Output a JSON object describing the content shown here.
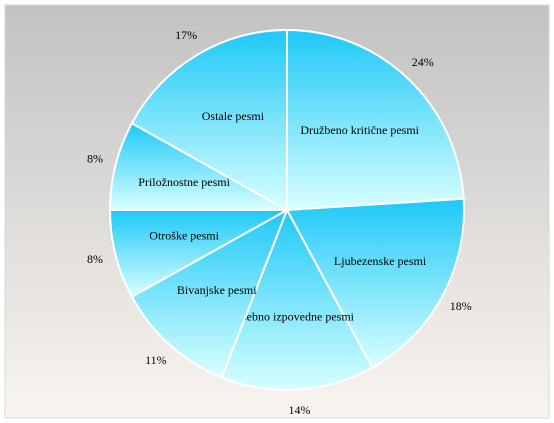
{
  "chart_data": {
    "type": "pie",
    "categories": [
      "Družbeno kritične pesmi",
      "Ljubezenske pesmi",
      "Osebno izpovedne pesmi",
      "Bivanjske pesmi",
      "Otroške pesmi",
      "Priložnostne pesmi",
      "Ostale pesmi"
    ],
    "values": [
      24,
      18,
      14,
      11,
      8,
      8,
      17
    ],
    "value_labels": [
      "24%",
      "18%",
      "14%",
      "11%",
      "8%",
      "8%",
      "17%"
    ],
    "color": "#1ec8f8"
  }
}
